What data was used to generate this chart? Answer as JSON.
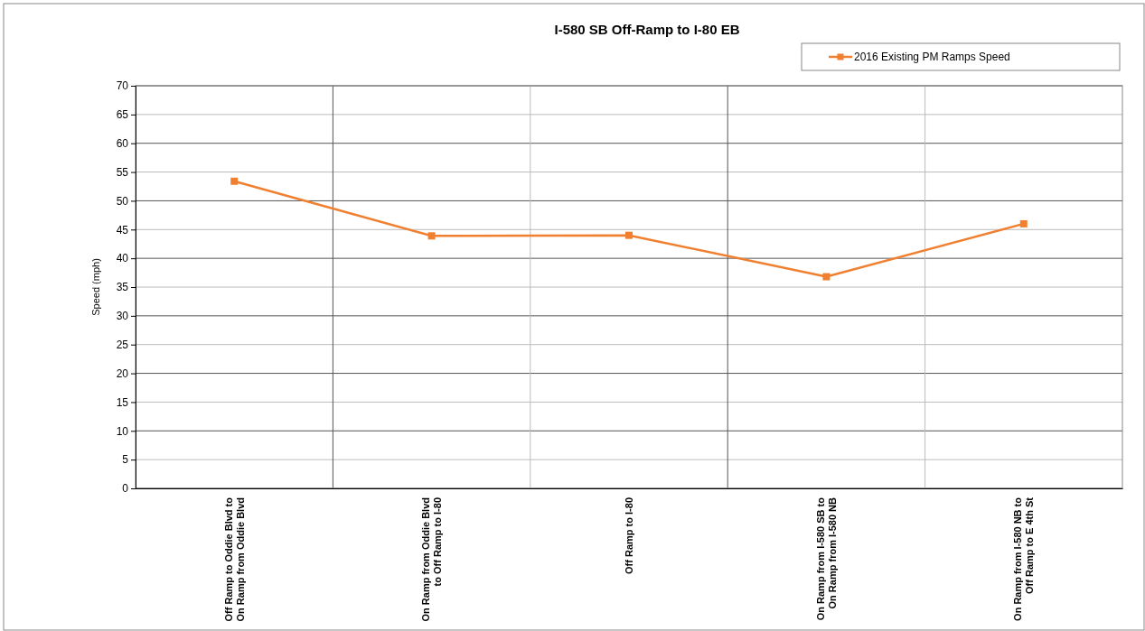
{
  "chart_data": {
    "type": "line",
    "title": "I-580 SB Off-Ramp to I-80 EB",
    "ylabel": "Speed (mph)",
    "categories": [
      "Off Ramp to Oddie Blvd to\nOn Ramp from Oddie Blvd",
      "On Ramp from Oddie Blvd\nto Off Ramp to I-80",
      "Off Ramp to I-80",
      "On Ramp from I-580 SB to\nOn Ramp from I-580 NB",
      "On Ramp from I-580 NB to\nOff Ramp to E 4th St"
    ],
    "series": [
      {
        "name": "2016 Existing PM Ramps Speed",
        "color": "#f08030",
        "values": [
          53.4,
          43.9,
          44,
          36.8,
          46
        ]
      }
    ],
    "ylim": [
      0,
      70
    ],
    "yticks": [
      0,
      5,
      10,
      15,
      20,
      25,
      30,
      35,
      40,
      45,
      50,
      55,
      60,
      65,
      70
    ],
    "grid": true,
    "legend": "top right",
    "marker": "square",
    "line_style": "solid"
  }
}
